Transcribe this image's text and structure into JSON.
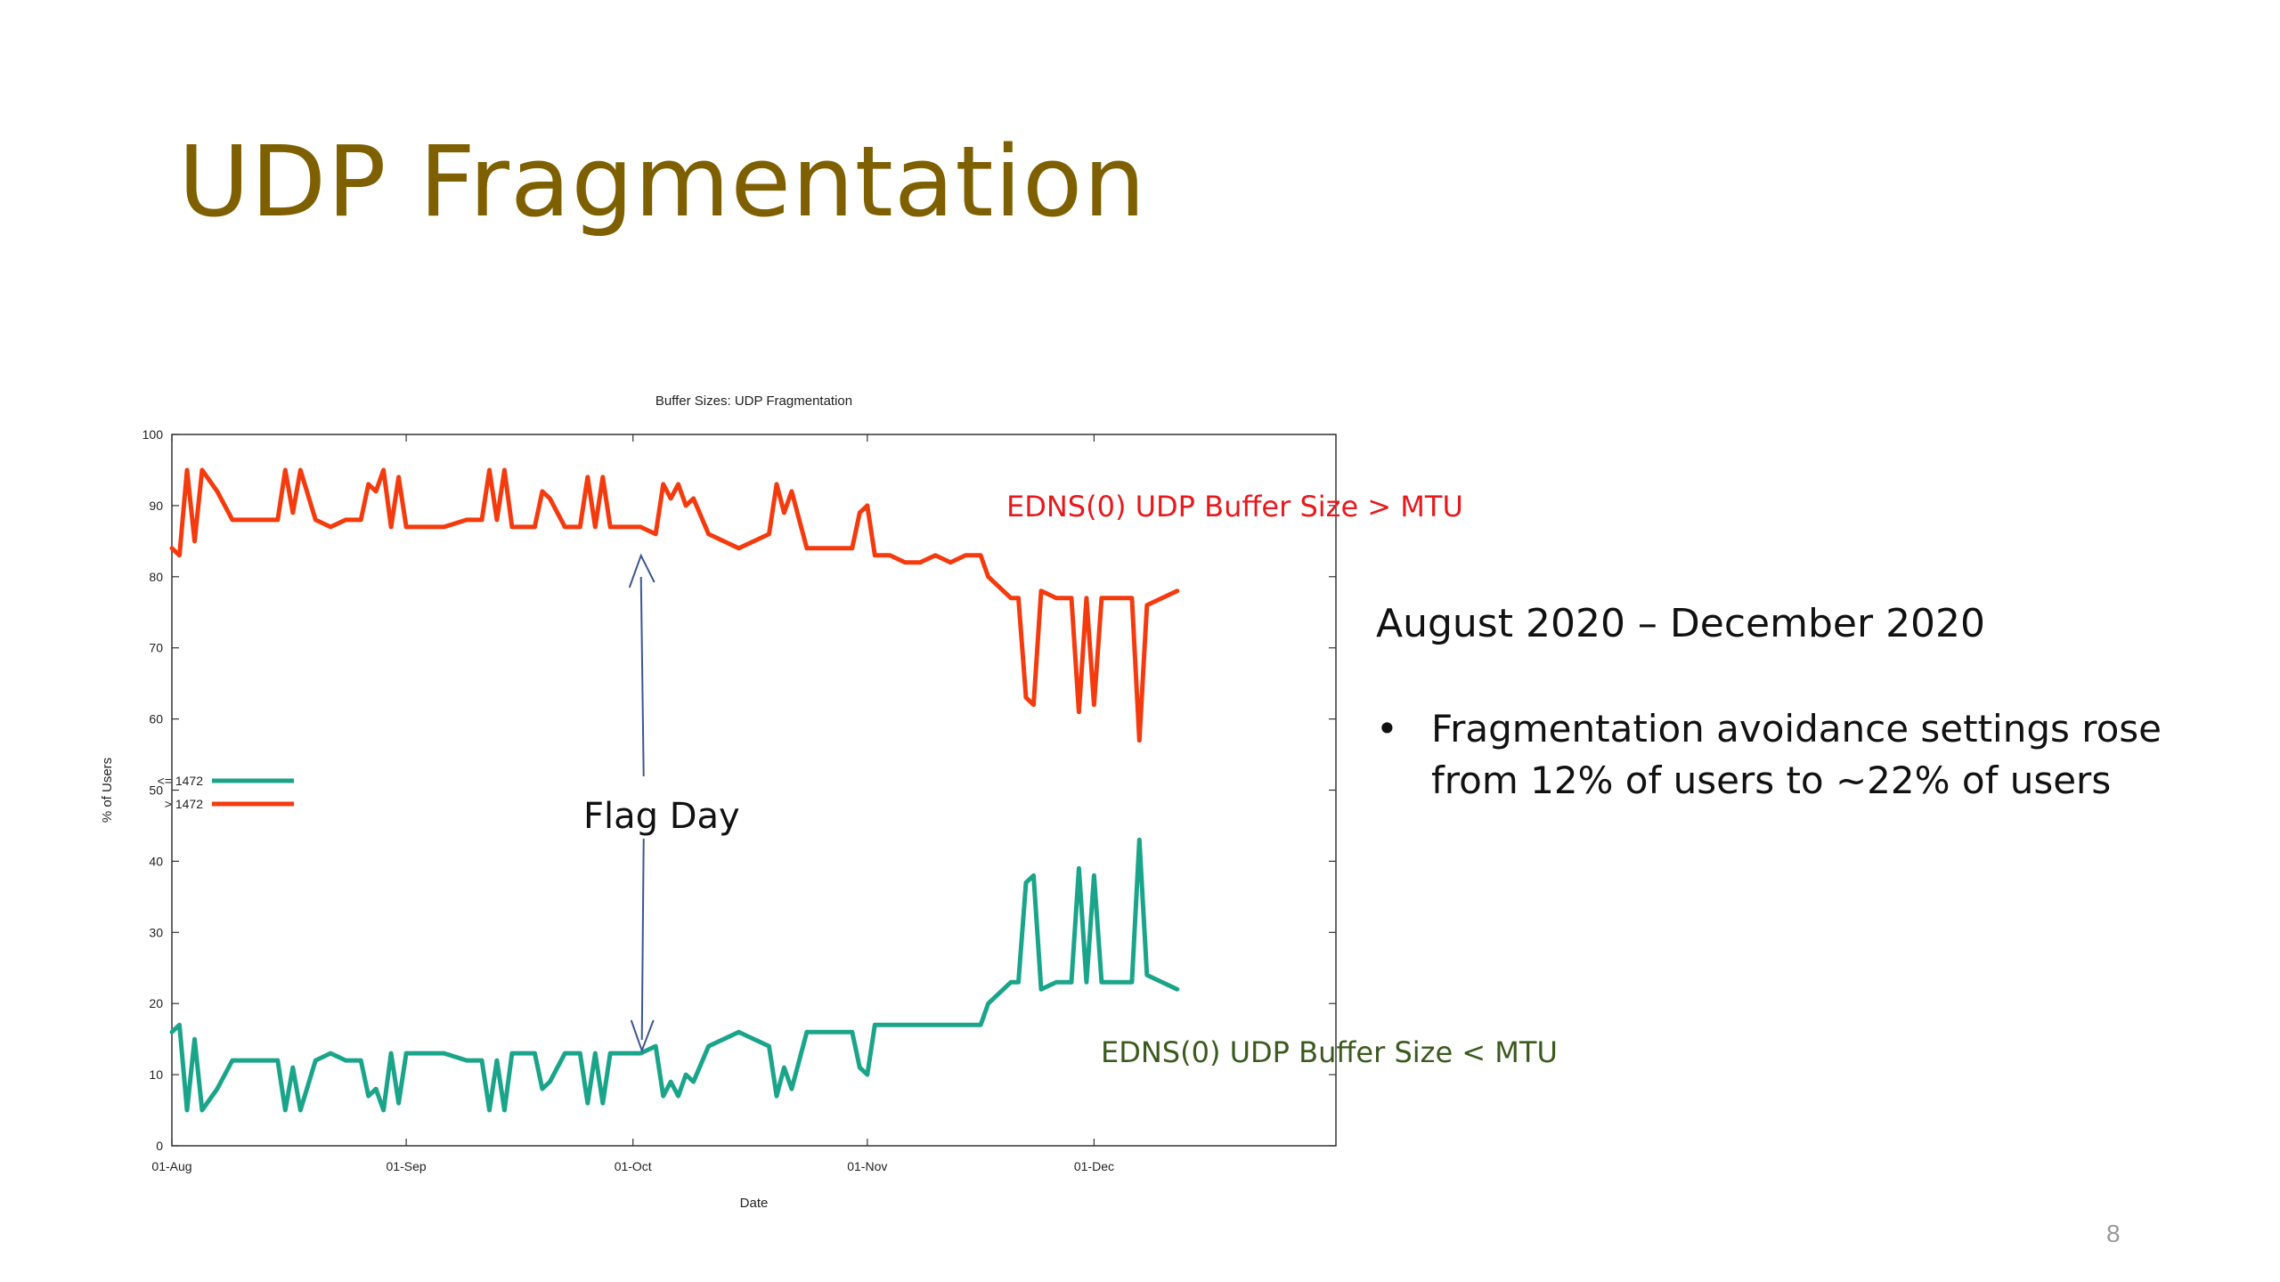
{
  "slide": {
    "title": "UDP Fragmentation",
    "right_heading": "August 2020 – December 2020",
    "bullets": [
      "Fragmentation avoidance settings rose from 12% of users to ~22% of users"
    ],
    "slide_number": "8"
  },
  "annotations": {
    "upper": "EDNS(0) UDP Buffer Size > MTU",
    "lower": "EDNS(0) UDP Buffer Size < MTU",
    "flag_day": "Flag Day"
  },
  "colors": {
    "title": "#7f6000",
    "series_low": "#1aa58a",
    "series_high": "#f53b0e",
    "upper_note": "#e8191d",
    "lower_note": "#3b5a1e",
    "arrow": "#3c5694"
  },
  "chart_data": {
    "type": "line",
    "title": "Buffer Sizes: UDP Fragmentation",
    "xlabel": "Date",
    "ylabel": "% of Users",
    "xlim": [
      "2020-08-01",
      "2021-01-02"
    ],
    "ylim": [
      0,
      100
    ],
    "yticks": [
      0,
      10,
      20,
      30,
      40,
      50,
      60,
      70,
      80,
      90,
      100
    ],
    "xticks": [
      {
        "label": "01-Aug",
        "date": "2020-08-01"
      },
      {
        "label": "01-Sep",
        "date": "2020-09-01"
      },
      {
        "label": "01-Oct",
        "date": "2020-10-01"
      },
      {
        "label": "01-Nov",
        "date": "2020-11-01"
      },
      {
        "label": "01-Dec",
        "date": "2020-12-01"
      }
    ],
    "grid": false,
    "legend": "middle-left",
    "series": [
      {
        "name": "<= 1472",
        "color": "#1aa58a",
        "points": [
          [
            "2020-08-01",
            16
          ],
          [
            "2020-08-02",
            17
          ],
          [
            "2020-08-03",
            5
          ],
          [
            "2020-08-04",
            15
          ],
          [
            "2020-08-05",
            5
          ],
          [
            "2020-08-07",
            8
          ],
          [
            "2020-08-09",
            12
          ],
          [
            "2020-08-11",
            12
          ],
          [
            "2020-08-13",
            12
          ],
          [
            "2020-08-15",
            12
          ],
          [
            "2020-08-16",
            5
          ],
          [
            "2020-08-17",
            11
          ],
          [
            "2020-08-18",
            5
          ],
          [
            "2020-08-20",
            12
          ],
          [
            "2020-08-22",
            13
          ],
          [
            "2020-08-24",
            12
          ],
          [
            "2020-08-26",
            12
          ],
          [
            "2020-08-27",
            7
          ],
          [
            "2020-08-28",
            8
          ],
          [
            "2020-08-29",
            5
          ],
          [
            "2020-08-30",
            13
          ],
          [
            "2020-08-31",
            6
          ],
          [
            "2020-09-01",
            13
          ],
          [
            "2020-09-03",
            13
          ],
          [
            "2020-09-06",
            13
          ],
          [
            "2020-09-09",
            12
          ],
          [
            "2020-09-11",
            12
          ],
          [
            "2020-09-12",
            5
          ],
          [
            "2020-09-13",
            12
          ],
          [
            "2020-09-14",
            5
          ],
          [
            "2020-09-15",
            13
          ],
          [
            "2020-09-18",
            13
          ],
          [
            "2020-09-19",
            8
          ],
          [
            "2020-09-20",
            9
          ],
          [
            "2020-09-22",
            13
          ],
          [
            "2020-09-24",
            13
          ],
          [
            "2020-09-25",
            6
          ],
          [
            "2020-09-26",
            13
          ],
          [
            "2020-09-27",
            6
          ],
          [
            "2020-09-28",
            13
          ],
          [
            "2020-09-30",
            13
          ],
          [
            "2020-10-02",
            13
          ],
          [
            "2020-10-04",
            14
          ],
          [
            "2020-10-05",
            7
          ],
          [
            "2020-10-06",
            9
          ],
          [
            "2020-10-07",
            7
          ],
          [
            "2020-10-08",
            10
          ],
          [
            "2020-10-09",
            9
          ],
          [
            "2020-10-11",
            14
          ],
          [
            "2020-10-13",
            15
          ],
          [
            "2020-10-15",
            16
          ],
          [
            "2020-10-17",
            15
          ],
          [
            "2020-10-19",
            14
          ],
          [
            "2020-10-20",
            7
          ],
          [
            "2020-10-21",
            11
          ],
          [
            "2020-10-22",
            8
          ],
          [
            "2020-10-24",
            16
          ],
          [
            "2020-10-26",
            16
          ],
          [
            "2020-10-28",
            16
          ],
          [
            "2020-10-30",
            16
          ],
          [
            "2020-10-31",
            11
          ],
          [
            "2020-11-01",
            10
          ],
          [
            "2020-11-02",
            17
          ],
          [
            "2020-11-04",
            17
          ],
          [
            "2020-11-06",
            17
          ],
          [
            "2020-11-08",
            17
          ],
          [
            "2020-11-10",
            17
          ],
          [
            "2020-11-12",
            17
          ],
          [
            "2020-11-14",
            17
          ],
          [
            "2020-11-16",
            17
          ],
          [
            "2020-11-17",
            20
          ],
          [
            "2020-11-18",
            21
          ],
          [
            "2020-11-20",
            23
          ],
          [
            "2020-11-21",
            23
          ],
          [
            "2020-11-22",
            37
          ],
          [
            "2020-11-23",
            38
          ],
          [
            "2020-11-24",
            22
          ],
          [
            "2020-11-26",
            23
          ],
          [
            "2020-11-28",
            23
          ],
          [
            "2020-11-29",
            39
          ],
          [
            "2020-11-30",
            23
          ],
          [
            "2020-12-01",
            38
          ],
          [
            "2020-12-02",
            23
          ],
          [
            "2020-12-04",
            23
          ],
          [
            "2020-12-06",
            23
          ],
          [
            "2020-12-07",
            43
          ],
          [
            "2020-12-08",
            24
          ],
          [
            "2020-12-10",
            23
          ],
          [
            "2020-12-12",
            22
          ]
        ]
      },
      {
        "name": "> 1472",
        "color": "#f53b0e",
        "points": [
          [
            "2020-08-01",
            84
          ],
          [
            "2020-08-02",
            83
          ],
          [
            "2020-08-03",
            95
          ],
          [
            "2020-08-04",
            85
          ],
          [
            "2020-08-05",
            95
          ],
          [
            "2020-08-07",
            92
          ],
          [
            "2020-08-09",
            88
          ],
          [
            "2020-08-11",
            88
          ],
          [
            "2020-08-13",
            88
          ],
          [
            "2020-08-15",
            88
          ],
          [
            "2020-08-16",
            95
          ],
          [
            "2020-08-17",
            89
          ],
          [
            "2020-08-18",
            95
          ],
          [
            "2020-08-20",
            88
          ],
          [
            "2020-08-22",
            87
          ],
          [
            "2020-08-24",
            88
          ],
          [
            "2020-08-26",
            88
          ],
          [
            "2020-08-27",
            93
          ],
          [
            "2020-08-28",
            92
          ],
          [
            "2020-08-29",
            95
          ],
          [
            "2020-08-30",
            87
          ],
          [
            "2020-08-31",
            94
          ],
          [
            "2020-09-01",
            87
          ],
          [
            "2020-09-03",
            87
          ],
          [
            "2020-09-06",
            87
          ],
          [
            "2020-09-09",
            88
          ],
          [
            "2020-09-11",
            88
          ],
          [
            "2020-09-12",
            95
          ],
          [
            "2020-09-13",
            88
          ],
          [
            "2020-09-14",
            95
          ],
          [
            "2020-09-15",
            87
          ],
          [
            "2020-09-18",
            87
          ],
          [
            "2020-09-19",
            92
          ],
          [
            "2020-09-20",
            91
          ],
          [
            "2020-09-22",
            87
          ],
          [
            "2020-09-24",
            87
          ],
          [
            "2020-09-25",
            94
          ],
          [
            "2020-09-26",
            87
          ],
          [
            "2020-09-27",
            94
          ],
          [
            "2020-09-28",
            87
          ],
          [
            "2020-09-30",
            87
          ],
          [
            "2020-10-02",
            87
          ],
          [
            "2020-10-04",
            86
          ],
          [
            "2020-10-05",
            93
          ],
          [
            "2020-10-06",
            91
          ],
          [
            "2020-10-07",
            93
          ],
          [
            "2020-10-08",
            90
          ],
          [
            "2020-10-09",
            91
          ],
          [
            "2020-10-11",
            86
          ],
          [
            "2020-10-13",
            85
          ],
          [
            "2020-10-15",
            84
          ],
          [
            "2020-10-17",
            85
          ],
          [
            "2020-10-19",
            86
          ],
          [
            "2020-10-20",
            93
          ],
          [
            "2020-10-21",
            89
          ],
          [
            "2020-10-22",
            92
          ],
          [
            "2020-10-24",
            84
          ],
          [
            "2020-10-26",
            84
          ],
          [
            "2020-10-28",
            84
          ],
          [
            "2020-10-30",
            84
          ],
          [
            "2020-10-31",
            89
          ],
          [
            "2020-11-01",
            90
          ],
          [
            "2020-11-02",
            83
          ],
          [
            "2020-11-04",
            83
          ],
          [
            "2020-11-06",
            82
          ],
          [
            "2020-11-08",
            82
          ],
          [
            "2020-11-10",
            83
          ],
          [
            "2020-11-12",
            82
          ],
          [
            "2020-11-14",
            83
          ],
          [
            "2020-11-16",
            83
          ],
          [
            "2020-11-17",
            80
          ],
          [
            "2020-11-18",
            79
          ],
          [
            "2020-11-20",
            77
          ],
          [
            "2020-11-21",
            77
          ],
          [
            "2020-11-22",
            63
          ],
          [
            "2020-11-23",
            62
          ],
          [
            "2020-11-24",
            78
          ],
          [
            "2020-11-26",
            77
          ],
          [
            "2020-11-28",
            77
          ],
          [
            "2020-11-29",
            61
          ],
          [
            "2020-11-30",
            77
          ],
          [
            "2020-12-01",
            62
          ],
          [
            "2020-12-02",
            77
          ],
          [
            "2020-12-04",
            77
          ],
          [
            "2020-12-06",
            77
          ],
          [
            "2020-12-07",
            57
          ],
          [
            "2020-12-08",
            76
          ],
          [
            "2020-12-10",
            77
          ],
          [
            "2020-12-12",
            78
          ]
        ]
      }
    ],
    "annotations": [
      {
        "text": "Flag Day",
        "date": "2020-10-01"
      }
    ]
  }
}
